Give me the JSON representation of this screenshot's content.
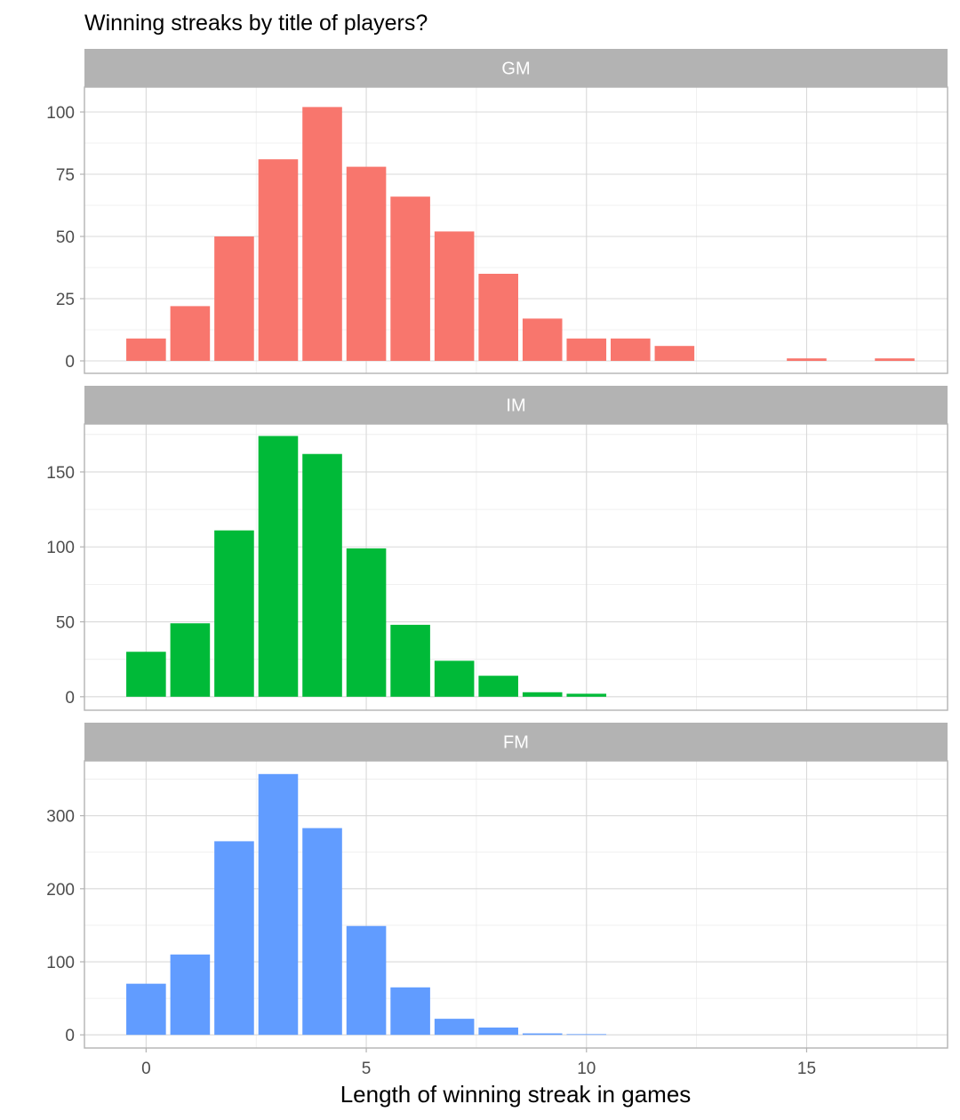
{
  "chart_data": {
    "type": "bar",
    "title": "Winning streaks by title of players?",
    "xlabel": "Length of winning streak in games",
    "ylabel": "",
    "x_ticks": [
      0,
      5,
      10,
      15
    ],
    "xlim": [
      -1.4,
      18.2
    ],
    "grid": true,
    "facets": [
      {
        "label": "GM",
        "color": "#F8766D",
        "x": [
          0,
          1,
          2,
          3,
          4,
          5,
          6,
          7,
          8,
          9,
          10,
          11,
          12,
          15,
          17
        ],
        "values": [
          9,
          22,
          50,
          81,
          102,
          78,
          66,
          52,
          35,
          17,
          9,
          9,
          6,
          1,
          1
        ],
        "y_ticks": [
          0,
          25,
          50,
          75,
          100
        ],
        "ylim": [
          -5,
          110
        ]
      },
      {
        "label": "IM",
        "color": "#00BA38",
        "x": [
          0,
          1,
          2,
          3,
          4,
          5,
          6,
          7,
          8,
          9,
          10
        ],
        "values": [
          30,
          49,
          111,
          174,
          162,
          99,
          48,
          24,
          14,
          3,
          2
        ],
        "y_ticks": [
          0,
          50,
          100,
          150
        ],
        "ylim": [
          -9,
          182
        ]
      },
      {
        "label": "FM",
        "color": "#619CFF",
        "x": [
          0,
          1,
          2,
          3,
          4,
          5,
          6,
          7,
          8,
          9,
          10
        ],
        "values": [
          70,
          110,
          265,
          357,
          283,
          149,
          65,
          22,
          10,
          2,
          1
        ],
        "y_ticks": [
          0,
          100,
          200,
          300
        ],
        "ylim": [
          -18,
          375
        ]
      }
    ]
  }
}
